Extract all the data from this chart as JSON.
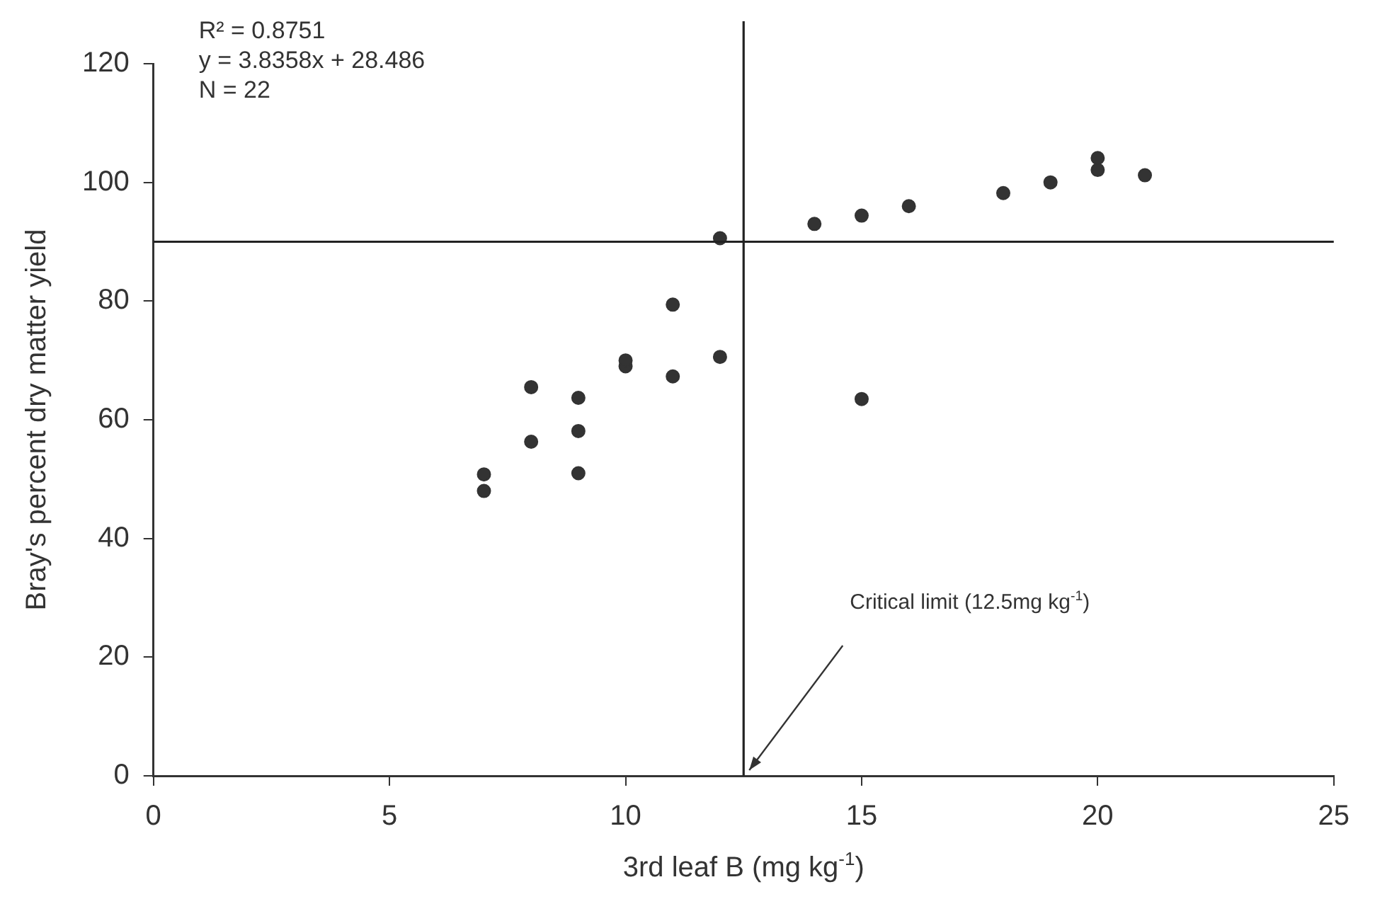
{
  "chart_data": {
    "type": "scatter",
    "xlabel": "3rd leaf B (mg kg$^{-1}$)",
    "ylabel": "Bray's percent dry matter yield",
    "annotations": [
      "R² = 0.8751",
      "y = 3.8358x + 28.486",
      "N = 22",
      "Critical limit (12.5mg kg$^{-1}$)"
    ],
    "x": [
      7,
      7,
      8,
      8,
      9,
      9,
      9,
      10,
      10,
      11,
      11,
      12,
      12,
      14,
      15,
      15,
      16,
      18,
      19,
      20,
      20,
      21
    ],
    "values": [
      50.8,
      48,
      65.5,
      56.3,
      63.7,
      58.1,
      51,
      69,
      70,
      79.4,
      67.3,
      90.6,
      70.6,
      93,
      94.4,
      63.5,
      96,
      98.2,
      100,
      104.1,
      102.1,
      101.2
    ],
    "color": "#333333",
    "marker": "circle",
    "ref_lines": [
      {
        "axis": "y",
        "value": 90,
        "color": "#222222"
      },
      {
        "axis": "x",
        "value": 12.5,
        "color": "#222222"
      }
    ],
    "xlim": [
      0,
      25
    ],
    "xticks": [
      0,
      5,
      10,
      15,
      20,
      25
    ],
    "ylim": [
      0,
      120
    ],
    "yticks": [
      0,
      20,
      40,
      60,
      80,
      100,
      120
    ],
    "grid": false,
    "legend": false
  }
}
